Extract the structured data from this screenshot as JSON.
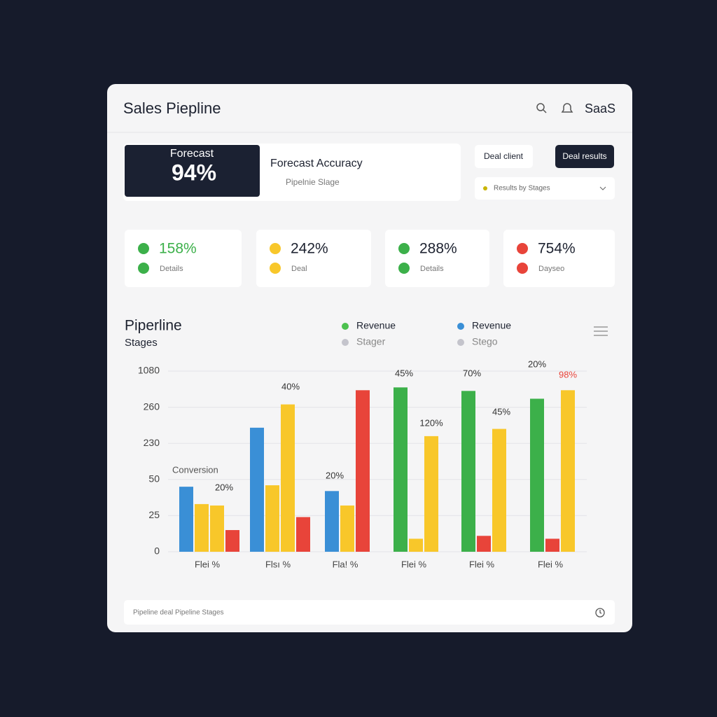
{
  "header": {
    "title": "Sales Piepline",
    "brand": "SaaS"
  },
  "forecast": {
    "label": "Forecast",
    "value": "94%",
    "title": "Forecast Accuracy",
    "subtitle": "Pipelnie Slage"
  },
  "buttons": [
    "Deal client",
    "Deal results"
  ],
  "dropdown": "Results by Stages",
  "kpis": [
    {
      "value": "158%",
      "label": "Details",
      "color": "#3cb04a"
    },
    {
      "value": "242%",
      "label": "Deal",
      "color": "#f8c72a"
    },
    {
      "value": "288%",
      "label": "Details",
      "color": "#3cb04a"
    },
    {
      "value": "754%",
      "label": "Dayseo",
      "color": "#e8443a"
    }
  ],
  "chart_data": {
    "type": "grouped-bar",
    "title": "Piperline",
    "subtitle": "Stages",
    "legend": [
      {
        "name": "Revenue",
        "color": "#4cc14f"
      },
      {
        "name": "Revenue",
        "color": "#3a8fd6"
      },
      {
        "name": "Stager",
        "color": "#c4c4cc"
      },
      {
        "name": "Stego",
        "color": "#c4c4cc"
      }
    ],
    "categories": [
      "Flei %",
      "Flsı %",
      "Fla! %",
      "Flei %",
      "Flei %",
      "Flei %"
    ],
    "groups": [
      [
        {
          "color": "#3a8fd6",
          "value": 45
        },
        {
          "color": "#f8c72a",
          "value": 33
        },
        {
          "color": "#f8c72a",
          "value": 32
        },
        {
          "color": "#e8443a",
          "value": 15
        }
      ],
      [
        {
          "color": "#3a8fd6",
          "value": 243
        },
        {
          "color": "#f8c72a",
          "value": 46
        },
        {
          "color": "#f8c72a",
          "value": 324
        },
        {
          "color": "#e8443a",
          "value": 24
        }
      ],
      [
        {
          "color": "#3a8fd6",
          "value": 42
        },
        {
          "color": "#f8c72a",
          "value": 32
        },
        {
          "color": "#e8443a",
          "value": 646
        }
      ],
      [
        {
          "color": "#3cb04a",
          "value": 710
        },
        {
          "color": "#f8c72a",
          "value": 9
        },
        {
          "color": "#f8c72a",
          "value": 236
        }
      ],
      [
        {
          "color": "#3cb04a",
          "value": 630
        },
        {
          "color": "#e8443a",
          "value": 11
        },
        {
          "color": "#f8c72a",
          "value": 242
        }
      ],
      [
        {
          "color": "#3cb04a",
          "value": 453
        },
        {
          "color": "#e8443a",
          "value": 9
        },
        {
          "color": "#f8c72a",
          "value": 646
        }
      ]
    ],
    "ylim": [
      0,
      1080
    ],
    "yticks": [
      0,
      25,
      50,
      230,
      260,
      1080
    ],
    "grid": true,
    "annotations": [
      {
        "text": "Conversion",
        "color": "#555555"
      },
      {
        "text": "20%",
        "color": "#333333"
      },
      {
        "text": "40%",
        "color": "#333333"
      },
      {
        "text": "20%",
        "color": "#333333"
      },
      {
        "text": "45%",
        "color": "#333333"
      },
      {
        "text": "120%",
        "color": "#333333"
      },
      {
        "text": "70%",
        "color": "#333333"
      },
      {
        "text": "45%",
        "color": "#333333"
      },
      {
        "text": "20%",
        "color": "#333333"
      },
      {
        "text": "98%",
        "color": "#e8443a"
      }
    ]
  },
  "footer": {
    "placeholder": "Pipeline deal Pipeline Stages"
  }
}
